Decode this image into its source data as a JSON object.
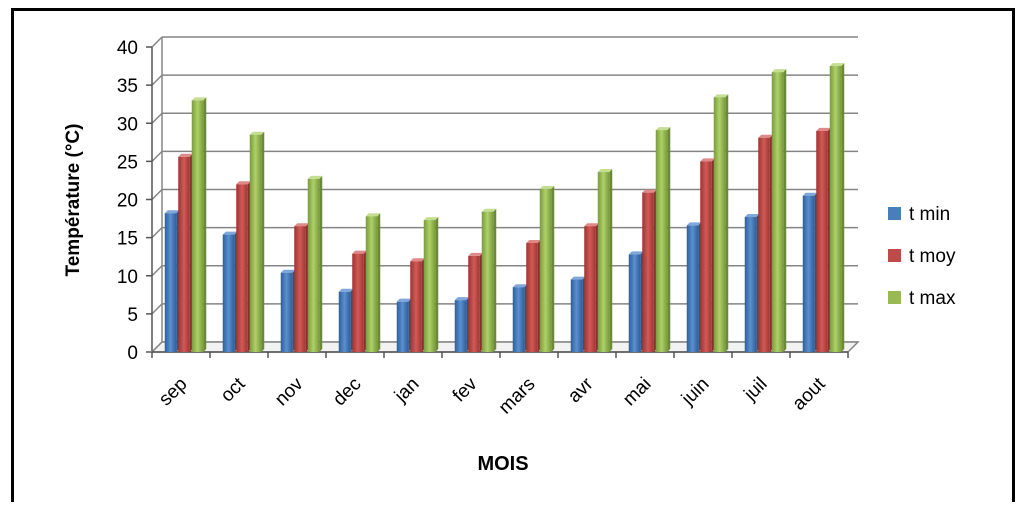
{
  "chart_data": {
    "type": "bar",
    "title": "",
    "xlabel": "MOIS",
    "ylabel": "Température (°C)",
    "ylim": [
      0,
      40
    ],
    "yticks": [
      0,
      5,
      10,
      15,
      20,
      25,
      30,
      35,
      40
    ],
    "grid": true,
    "legend_position": "right",
    "categories": [
      "sep",
      "oct",
      "nov",
      "dec",
      "jan",
      "fev",
      "mars",
      "avr",
      "mai",
      "juin",
      "juil",
      "aout"
    ],
    "series": [
      {
        "name": "t min",
        "color": "#4a7ebb",
        "values": [
          18.2,
          15.4,
          10.4,
          7.9,
          6.6,
          6.8,
          8.5,
          9.5,
          12.8,
          16.6,
          17.7,
          20.5
        ]
      },
      {
        "name": "t moy",
        "color": "#be4b48",
        "values": [
          25.6,
          22.0,
          16.5,
          12.9,
          11.9,
          12.6,
          14.3,
          16.5,
          20.9,
          25.0,
          28.1,
          29.0
        ]
      },
      {
        "name": "t max",
        "color": "#98b954",
        "values": [
          33.0,
          28.5,
          22.7,
          17.8,
          17.3,
          18.4,
          21.4,
          23.6,
          29.1,
          33.4,
          36.7,
          37.5
        ]
      }
    ]
  }
}
